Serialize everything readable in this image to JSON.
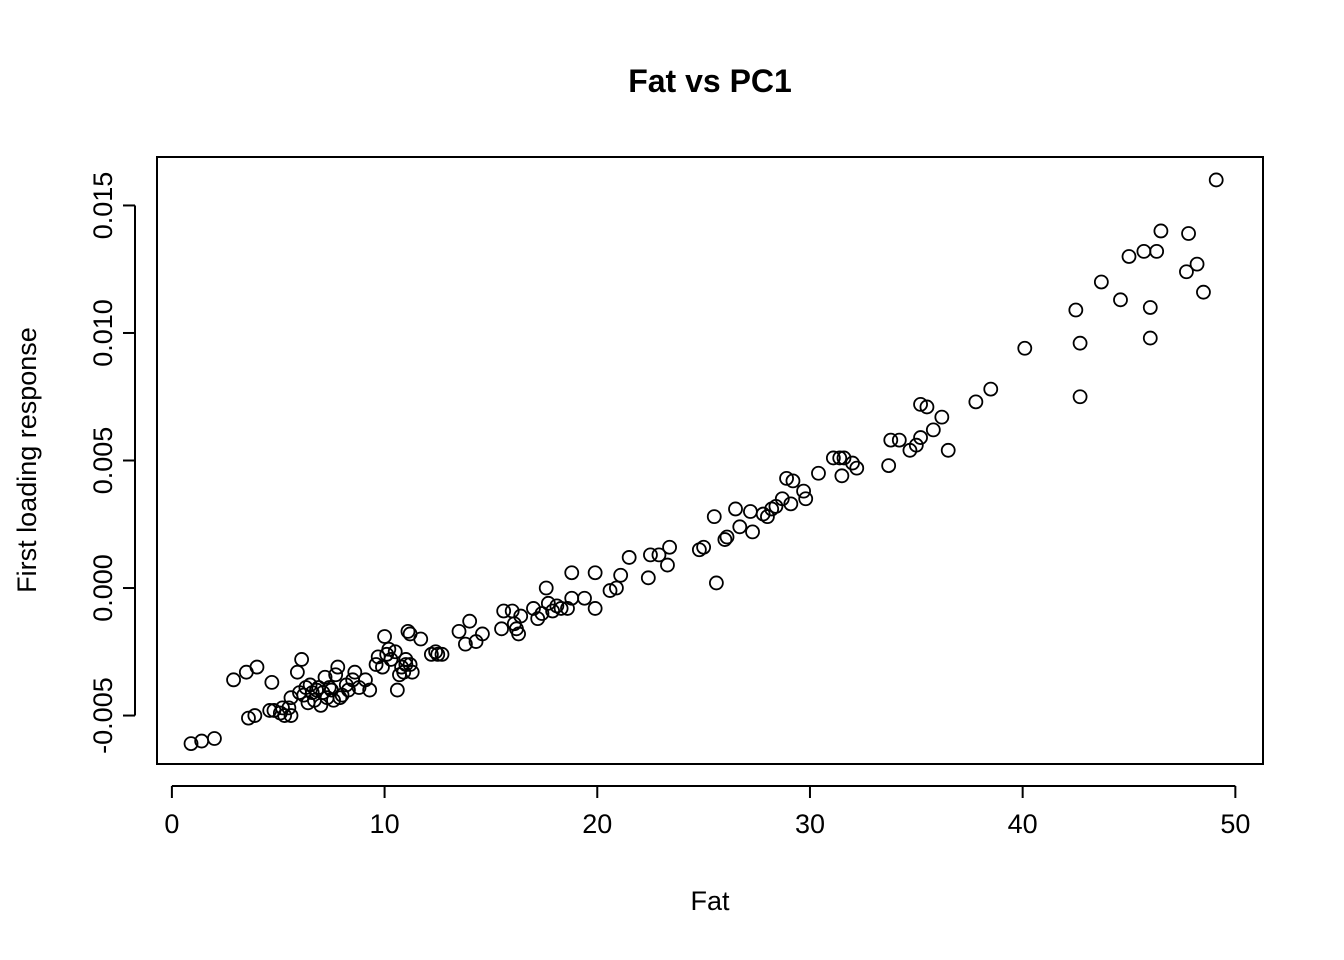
{
  "chart_data": {
    "type": "scatter",
    "title": "Fat vs PC1",
    "xlabel": "Fat",
    "ylabel": "First loading response",
    "xlim": [
      -0.7,
      51.3
    ],
    "ylim": [
      -0.0069,
      0.0169
    ],
    "xticks": [
      0,
      10,
      20,
      30,
      40,
      50
    ],
    "xtick_labels": [
      "0",
      "10",
      "20",
      "30",
      "40",
      "50"
    ],
    "yticks": [
      -0.005,
      0.0,
      0.005,
      0.01,
      0.015
    ],
    "ytick_labels": [
      "-0.005",
      "0.000",
      "0.005",
      "0.010",
      "0.015"
    ],
    "grid": false,
    "marker": "open-circle",
    "points": [
      [
        0.9,
        -0.0061
      ],
      [
        1.4,
        -0.006
      ],
      [
        2.0,
        -0.0059
      ],
      [
        2.9,
        -0.0036
      ],
      [
        3.5,
        -0.0033
      ],
      [
        3.6,
        -0.0051
      ],
      [
        3.9,
        -0.005
      ],
      [
        4.0,
        -0.0031
      ],
      [
        4.6,
        -0.0048
      ],
      [
        4.7,
        -0.0037
      ],
      [
        4.8,
        -0.0048
      ],
      [
        5.1,
        -0.0049
      ],
      [
        5.2,
        -0.0047
      ],
      [
        5.3,
        -0.005
      ],
      [
        5.5,
        -0.0047
      ],
      [
        5.6,
        -0.005
      ],
      [
        5.6,
        -0.0043
      ],
      [
        5.9,
        -0.0033
      ],
      [
        6.0,
        -0.0041
      ],
      [
        6.1,
        -0.0028
      ],
      [
        6.2,
        -0.0042
      ],
      [
        6.3,
        -0.0039
      ],
      [
        6.4,
        -0.0045
      ],
      [
        6.5,
        -0.0038
      ],
      [
        6.6,
        -0.0041
      ],
      [
        6.7,
        -0.0044
      ],
      [
        6.8,
        -0.004
      ],
      [
        6.9,
        -0.0039
      ],
      [
        7.0,
        -0.0046
      ],
      [
        7.1,
        -0.0041
      ],
      [
        7.2,
        -0.0035
      ],
      [
        7.3,
        -0.0043
      ],
      [
        7.4,
        -0.0039
      ],
      [
        7.5,
        -0.004
      ],
      [
        7.6,
        -0.0044
      ],
      [
        7.7,
        -0.0034
      ],
      [
        7.8,
        -0.0031
      ],
      [
        7.9,
        -0.0043
      ],
      [
        8.0,
        -0.0042
      ],
      [
        8.2,
        -0.0038
      ],
      [
        8.3,
        -0.004
      ],
      [
        8.5,
        -0.0036
      ],
      [
        8.6,
        -0.0033
      ],
      [
        8.8,
        -0.0039
      ],
      [
        9.1,
        -0.0036
      ],
      [
        9.3,
        -0.004
      ],
      [
        9.6,
        -0.003
      ],
      [
        9.7,
        -0.0027
      ],
      [
        9.9,
        -0.0031
      ],
      [
        10.0,
        -0.0019
      ],
      [
        10.1,
        -0.0026
      ],
      [
        10.2,
        -0.0024
      ],
      [
        10.3,
        -0.0028
      ],
      [
        10.5,
        -0.0025
      ],
      [
        10.6,
        -0.004
      ],
      [
        10.7,
        -0.0034
      ],
      [
        10.8,
        -0.0031
      ],
      [
        10.9,
        -0.0033
      ],
      [
        11.0,
        -0.0028
      ],
      [
        11.0,
        -0.003
      ],
      [
        11.1,
        -0.0017
      ],
      [
        11.2,
        -0.0018
      ],
      [
        11.2,
        -0.003
      ],
      [
        11.3,
        -0.0033
      ],
      [
        11.7,
        -0.002
      ],
      [
        12.2,
        -0.0026
      ],
      [
        12.4,
        -0.0025
      ],
      [
        12.5,
        -0.0026
      ],
      [
        12.7,
        -0.0026
      ],
      [
        13.5,
        -0.0017
      ],
      [
        13.8,
        -0.0022
      ],
      [
        14.0,
        -0.0013
      ],
      [
        14.3,
        -0.0021
      ],
      [
        14.6,
        -0.0018
      ],
      [
        15.5,
        -0.0016
      ],
      [
        15.6,
        -0.0009
      ],
      [
        16.0,
        -0.0009
      ],
      [
        16.1,
        -0.0014
      ],
      [
        16.2,
        -0.0016
      ],
      [
        16.3,
        -0.0018
      ],
      [
        16.4,
        -0.0011
      ],
      [
        17.0,
        -0.0008
      ],
      [
        17.2,
        -0.0012
      ],
      [
        17.4,
        -0.001
      ],
      [
        17.6,
        0.0
      ],
      [
        17.7,
        -0.0006
      ],
      [
        17.9,
        -0.0009
      ],
      [
        18.1,
        -0.0007
      ],
      [
        18.3,
        -0.0008
      ],
      [
        18.6,
        -0.0008
      ],
      [
        18.8,
        0.0006
      ],
      [
        18.8,
        -0.0004
      ],
      [
        19.4,
        -0.0004
      ],
      [
        19.9,
        0.0006
      ],
      [
        19.9,
        -0.0008
      ],
      [
        20.6,
        -0.0001
      ],
      [
        20.9,
        0.0
      ],
      [
        21.1,
        0.0005
      ],
      [
        21.5,
        0.0012
      ],
      [
        22.4,
        0.0004
      ],
      [
        22.5,
        0.0013
      ],
      [
        22.9,
        0.0013
      ],
      [
        23.3,
        0.0009
      ],
      [
        23.4,
        0.0016
      ],
      [
        24.8,
        0.0015
      ],
      [
        25.0,
        0.0016
      ],
      [
        25.5,
        0.0028
      ],
      [
        25.6,
        0.0002
      ],
      [
        26.0,
        0.0019
      ],
      [
        26.1,
        0.002
      ],
      [
        26.5,
        0.0031
      ],
      [
        26.7,
        0.0024
      ],
      [
        27.2,
        0.003
      ],
      [
        27.3,
        0.0022
      ],
      [
        27.8,
        0.0029
      ],
      [
        28.0,
        0.0028
      ],
      [
        28.2,
        0.0031
      ],
      [
        28.4,
        0.0032
      ],
      [
        28.7,
        0.0035
      ],
      [
        28.9,
        0.0043
      ],
      [
        29.1,
        0.0033
      ],
      [
        29.2,
        0.0042
      ],
      [
        29.7,
        0.0038
      ],
      [
        29.8,
        0.0035
      ],
      [
        30.4,
        0.0045
      ],
      [
        31.1,
        0.0051
      ],
      [
        31.4,
        0.0051
      ],
      [
        31.6,
        0.0051
      ],
      [
        31.5,
        0.0044
      ],
      [
        32.0,
        0.0049
      ],
      [
        32.2,
        0.0047
      ],
      [
        33.7,
        0.0048
      ],
      [
        33.8,
        0.0058
      ],
      [
        34.2,
        0.0058
      ],
      [
        34.7,
        0.0054
      ],
      [
        35.0,
        0.0056
      ],
      [
        35.2,
        0.0059
      ],
      [
        35.2,
        0.0072
      ],
      [
        35.5,
        0.0071
      ],
      [
        35.8,
        0.0062
      ],
      [
        36.2,
        0.0067
      ],
      [
        36.5,
        0.0054
      ],
      [
        37.8,
        0.0073
      ],
      [
        38.5,
        0.0078
      ],
      [
        40.1,
        0.0094
      ],
      [
        42.5,
        0.0109
      ],
      [
        42.7,
        0.0096
      ],
      [
        42.7,
        0.0075
      ],
      [
        43.7,
        0.012
      ],
      [
        44.6,
        0.0113
      ],
      [
        45.0,
        0.013
      ],
      [
        45.7,
        0.0132
      ],
      [
        46.0,
        0.011
      ],
      [
        46.0,
        0.0098
      ],
      [
        46.3,
        0.0132
      ],
      [
        46.5,
        0.014
      ],
      [
        47.7,
        0.0124
      ],
      [
        47.8,
        0.0139
      ],
      [
        48.2,
        0.0127
      ],
      [
        48.5,
        0.0116
      ],
      [
        49.1,
        0.016
      ]
    ]
  }
}
